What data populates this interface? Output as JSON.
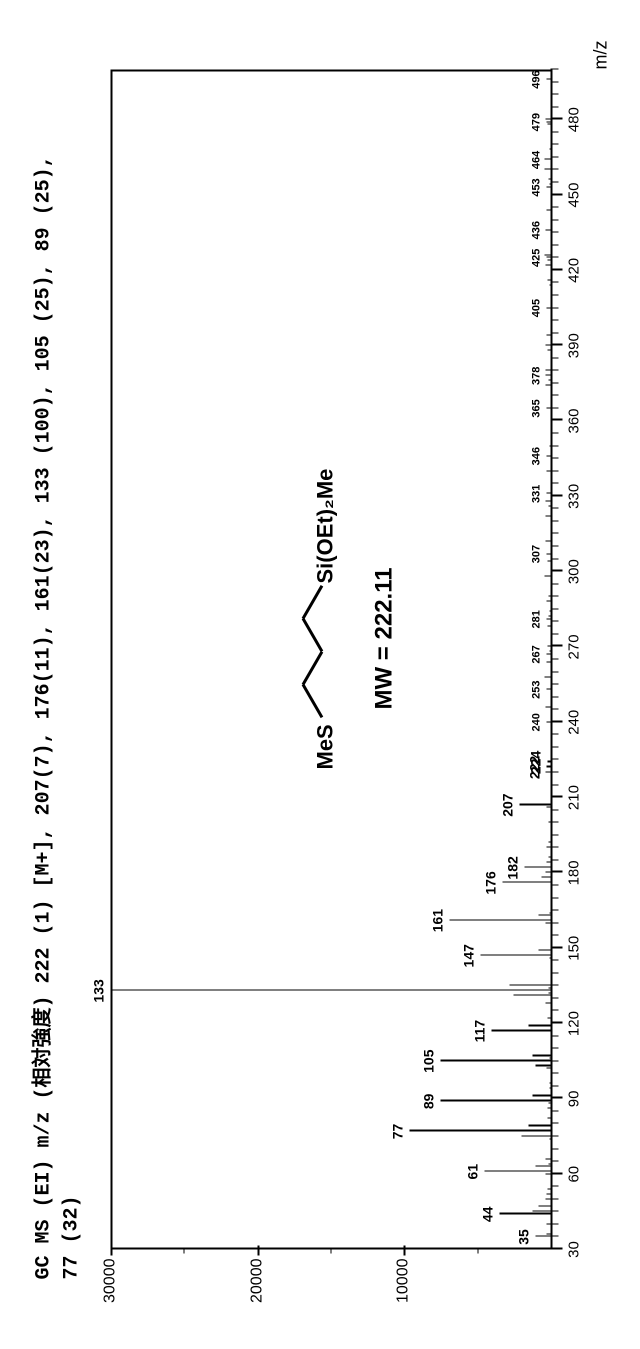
{
  "header_line1": "GC MS (EI) m/z (相対強度) 222 (1) [M+], 207(7), 176(11), 161(23), 133 (100), 105 (25), 89 (25),",
  "header_line2": "77 (32)",
  "x_axis_label": "m/z",
  "y_axis": {
    "ticks": [
      0,
      10000,
      20000,
      30000
    ],
    "labels": [
      "",
      "10000",
      "20000",
      "30000"
    ],
    "max": 30000
  },
  "x_axis": {
    "min": 30,
    "max": 500,
    "major_ticks": [
      30,
      60,
      90,
      120,
      150,
      180,
      210,
      240,
      270,
      300,
      330,
      360,
      390,
      420,
      450,
      480
    ],
    "labels": [
      "30",
      "60",
      "90",
      "120",
      "150",
      "180",
      "210",
      "240",
      "270",
      "300",
      "330",
      "360",
      "390",
      "420",
      "450",
      "480"
    ]
  },
  "peaks": [
    {
      "mz": 35,
      "intensity": 1000,
      "label": "35"
    },
    {
      "mz": 44,
      "intensity": 3500,
      "label": "44"
    },
    {
      "mz": 45,
      "intensity": 1200,
      "label": ""
    },
    {
      "mz": 47,
      "intensity": 800,
      "label": ""
    },
    {
      "mz": 61,
      "intensity": 4500,
      "label": "61"
    },
    {
      "mz": 63,
      "intensity": 1000,
      "label": ""
    },
    {
      "mz": 75,
      "intensity": 2000,
      "label": ""
    },
    {
      "mz": 77,
      "intensity": 9600,
      "label": "77"
    },
    {
      "mz": 79,
      "intensity": 1500,
      "label": ""
    },
    {
      "mz": 89,
      "intensity": 7500,
      "label": "89"
    },
    {
      "mz": 91,
      "intensity": 1200,
      "label": ""
    },
    {
      "mz": 103,
      "intensity": 1000,
      "label": ""
    },
    {
      "mz": 105,
      "intensity": 7500,
      "label": "105"
    },
    {
      "mz": 107,
      "intensity": 1200,
      "label": ""
    },
    {
      "mz": 117,
      "intensity": 4000,
      "label": "117"
    },
    {
      "mz": 119,
      "intensity": 1500,
      "label": ""
    },
    {
      "mz": 131,
      "intensity": 2500,
      "label": ""
    },
    {
      "mz": 133,
      "intensity": 30000,
      "label": "133"
    },
    {
      "mz": 135,
      "intensity": 2800,
      "label": ""
    },
    {
      "mz": 147,
      "intensity": 4800,
      "label": "147"
    },
    {
      "mz": 149,
      "intensity": 800,
      "label": ""
    },
    {
      "mz": 161,
      "intensity": 6900,
      "label": "161"
    },
    {
      "mz": 163,
      "intensity": 800,
      "label": ""
    },
    {
      "mz": 176,
      "intensity": 3300,
      "label": "176"
    },
    {
      "mz": 178,
      "intensity": 600,
      "label": ""
    },
    {
      "mz": 182,
      "intensity": 1800,
      "label": "182"
    },
    {
      "mz": 207,
      "intensity": 2100,
      "label": "207"
    },
    {
      "mz": 222,
      "intensity": 300,
      "label": "222"
    },
    {
      "mz": 224,
      "intensity": 200,
      "label": "224"
    }
  ],
  "noise_peaks": [
    {
      "mz": 240,
      "label": "240"
    },
    {
      "mz": 253,
      "label": "253"
    },
    {
      "mz": 267,
      "label": "267"
    },
    {
      "mz": 281,
      "label": "281"
    },
    {
      "mz": 307,
      "label": "307"
    },
    {
      "mz": 331,
      "label": "331"
    },
    {
      "mz": 346,
      "label": "346"
    },
    {
      "mz": 365,
      "label": "365"
    },
    {
      "mz": 378,
      "label": "378"
    },
    {
      "mz": 405,
      "label": "405"
    },
    {
      "mz": 425,
      "label": "425"
    },
    {
      "mz": 436,
      "label": "436"
    },
    {
      "mz": 453,
      "label": "453"
    },
    {
      "mz": 464,
      "label": "464"
    },
    {
      "mz": 479,
      "label": "479"
    },
    {
      "mz": 496,
      "label": "496"
    }
  ],
  "structure": {
    "left_text": "MeS",
    "right_text": "Si(OEt)₂Me",
    "mw_text": "MW = 222.11"
  },
  "colors": {
    "background": "#ffffff",
    "line": "#000000",
    "text": "#000000"
  }
}
